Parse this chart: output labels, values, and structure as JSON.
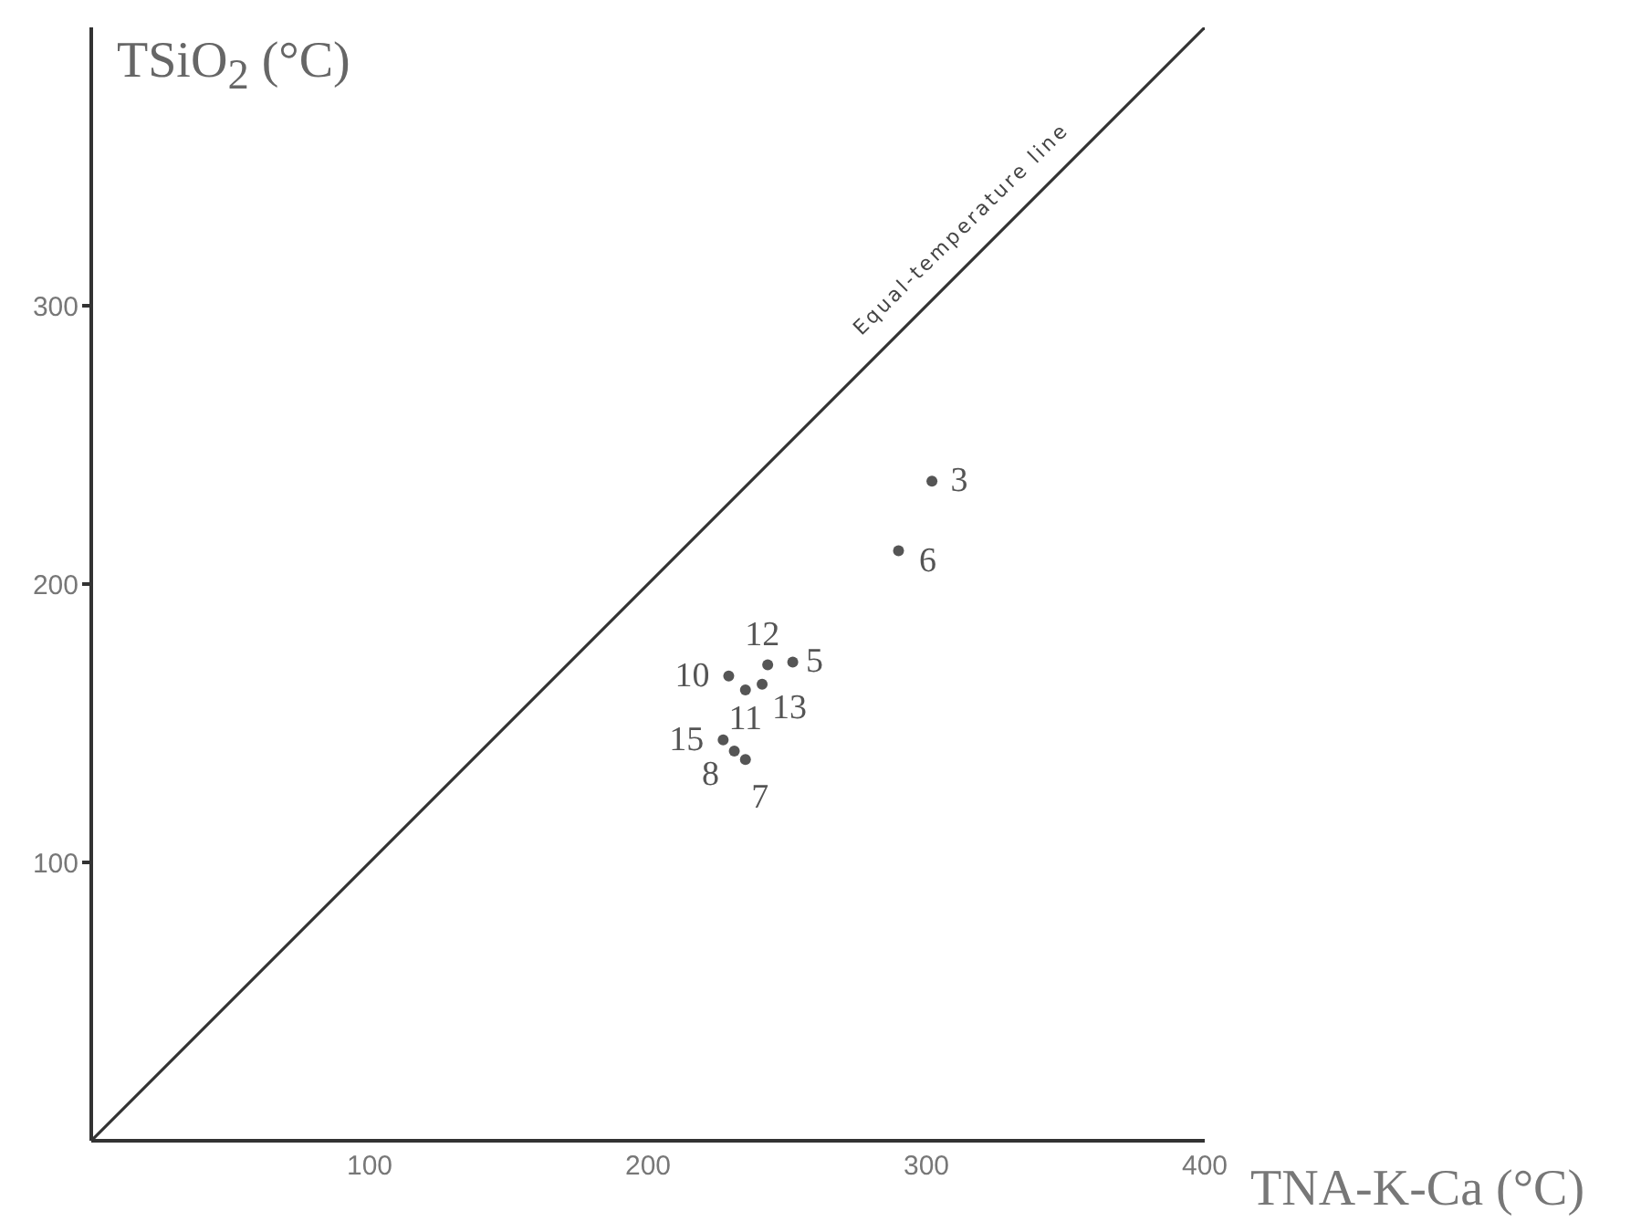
{
  "chart_data": {
    "type": "scatter",
    "xlabel": "TNA-K-Ca (°C)",
    "ylabel": "TSiO$_{2}$ (°C)",
    "xlim": [
      0,
      400
    ],
    "ylim": [
      0,
      400
    ],
    "xticks": [
      100,
      200,
      300,
      400
    ],
    "yticks": [
      100,
      200,
      300
    ],
    "grid": false,
    "legend": false,
    "marker": "circle",
    "series": [
      {
        "color": "#555555",
        "x": [
          302,
          290,
          243,
          229,
          252,
          235,
          241,
          227,
          231,
          235
        ],
        "values": [
          237,
          212,
          171,
          167,
          172,
          162,
          164,
          144,
          140,
          137
        ]
      },
      {
        "type": "line",
        "name": "Equal-temperature line",
        "color": "#333333",
        "line_style": "solid",
        "marker": "none",
        "x": [
          0,
          400
        ],
        "values": [
          0,
          400
        ]
      }
    ],
    "annotations": [
      {
        "text": "3",
        "x": 302,
        "y": 237
      },
      {
        "text": "6",
        "x": 290,
        "y": 212
      },
      {
        "text": "12",
        "x": 243,
        "y": 171
      },
      {
        "text": "10",
        "x": 229,
        "y": 167
      },
      {
        "text": "5",
        "x": 252,
        "y": 172
      },
      {
        "text": "11",
        "x": 235,
        "y": 162
      },
      {
        "text": "13",
        "x": 241,
        "y": 164
      },
      {
        "text": "15",
        "x": 227,
        "y": 144
      },
      {
        "text": "8",
        "x": 231,
        "y": 140
      },
      {
        "text": "7",
        "x": 235,
        "y": 137
      }
    ]
  }
}
